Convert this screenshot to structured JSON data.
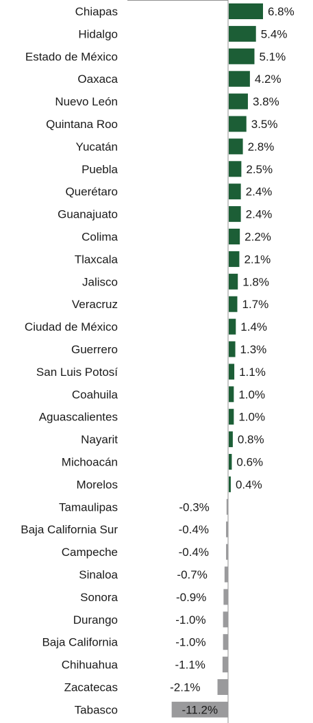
{
  "chart_data": {
    "type": "bar",
    "orientation": "horizontal",
    "title": "",
    "xlabel": "",
    "ylabel": "",
    "grid": false,
    "legend": "none",
    "colors": {
      "positive": "#1c5e36",
      "negative": "#9a9a9c"
    },
    "categories": [
      "Chiapas",
      "Hidalgo",
      "Estado de México",
      "Oaxaca",
      "Nuevo León",
      "Quintana Roo",
      "Yucatán",
      "Puebla",
      "Querétaro",
      "Guanajuato",
      "Colima",
      "Tlaxcala",
      "Jalisco",
      "Veracruz",
      "Ciudad de México",
      "Guerrero",
      "San Luis Potosí",
      "Coahuila",
      "Aguascalientes",
      "Nayarit",
      "Michoacán",
      "Morelos",
      "Tamaulipas",
      "Baja California Sur",
      "Campeche",
      "Sinaloa",
      "Sonora",
      "Durango",
      "Baja California",
      "Chihuahua",
      "Zacatecas",
      "Tabasco"
    ],
    "values": [
      6.8,
      5.4,
      5.1,
      4.2,
      3.8,
      3.5,
      2.8,
      2.5,
      2.4,
      2.4,
      2.2,
      2.1,
      1.8,
      1.7,
      1.4,
      1.3,
      1.1,
      1.0,
      1.0,
      0.8,
      0.6,
      0.4,
      -0.3,
      -0.4,
      -0.4,
      -0.7,
      -0.9,
      -1.0,
      -1.0,
      -1.1,
      -2.1,
      -11.2
    ],
    "data_labels": [
      "6.8%",
      "5.4%",
      "5.1%",
      "4.2%",
      "3.8%",
      "3.5%",
      "2.8%",
      "2.5%",
      "2.4%",
      "2.4%",
      "2.2%",
      "2.1%",
      "1.8%",
      "1.7%",
      "1.4%",
      "1.3%",
      "1.1%",
      "1.0%",
      "1.0%",
      "0.8%",
      "0.6%",
      "0.4%",
      "-0.3%",
      "-0.4%",
      "-0.4%",
      "-0.7%",
      "-0.9%",
      "-1.0%",
      "-1.0%",
      "-1.1%",
      "-2.1%",
      "-11.2%"
    ],
    "xlim": [
      -11.2,
      6.8
    ]
  }
}
